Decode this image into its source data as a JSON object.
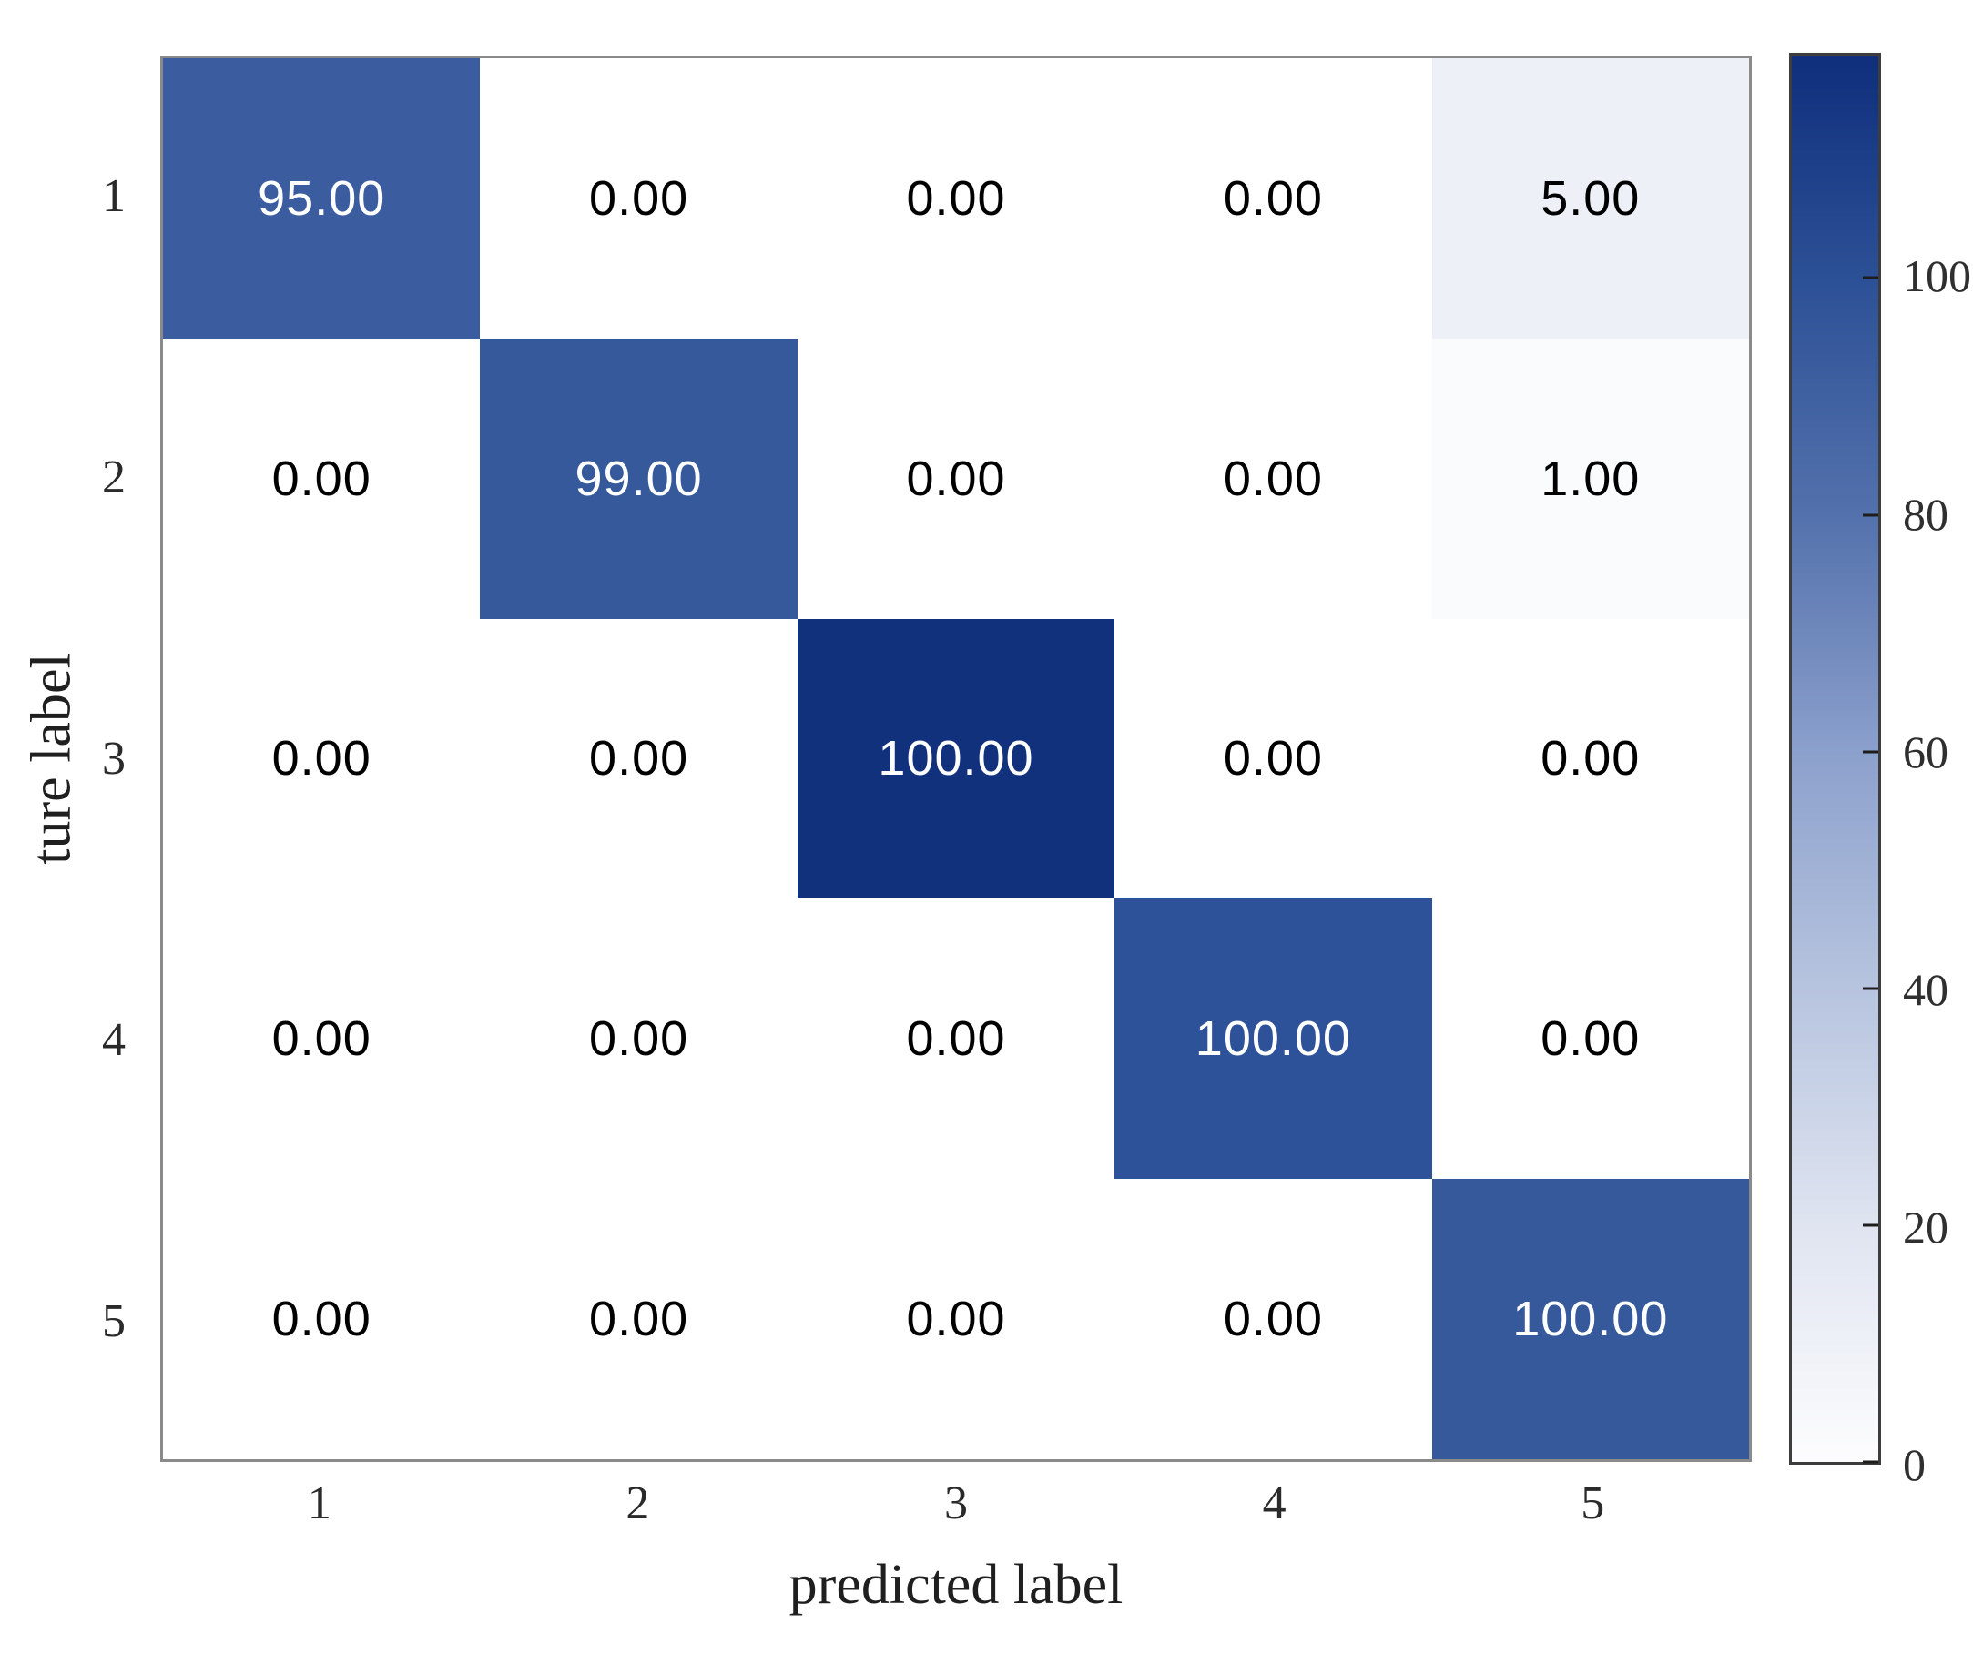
{
  "chart_data": {
    "type": "heatmap",
    "title": "",
    "xlabel": "predicted label",
    "ylabel": "ture label",
    "x_ticklabels": [
      "1",
      "2",
      "3",
      "4",
      "5"
    ],
    "y_ticklabels": [
      "1",
      "2",
      "3",
      "4",
      "5"
    ],
    "matrix": [
      [
        95.0,
        0.0,
        0.0,
        0.0,
        5.0
      ],
      [
        0.0,
        99.0,
        0.0,
        0.0,
        1.0
      ],
      [
        0.0,
        0.0,
        100.0,
        0.0,
        0.0
      ],
      [
        0.0,
        0.0,
        0.0,
        100.0,
        0.0
      ],
      [
        0.0,
        0.0,
        0.0,
        0.0,
        100.0
      ]
    ],
    "cell_text": [
      [
        "95.00",
        "0.00",
        "0.00",
        "0.00",
        "5.00"
      ],
      [
        "0.00",
        "99.00",
        "0.00",
        "0.00",
        "1.00"
      ],
      [
        "0.00",
        "0.00",
        "100.00",
        "0.00",
        "0.00"
      ],
      [
        "0.00",
        "0.00",
        "0.00",
        "100.00",
        "0.00"
      ],
      [
        "0.00",
        "0.00",
        "0.00",
        "0.00",
        "100.00"
      ]
    ],
    "colorbar": {
      "tick_labels": [
        "100",
        "80",
        "60",
        "40",
        "20",
        "0"
      ],
      "tick_values": [
        100,
        80,
        60,
        40,
        20,
        0
      ],
      "orientation": "vertical",
      "position": "right"
    },
    "grid": false
  },
  "colors": {
    "cell_colors": [
      [
        "#3B5D9F",
        "#FFFFFF",
        "#FFFFFF",
        "#FFFFFF",
        "#EEF0F7"
      ],
      [
        "#FFFFFF",
        "#36599C",
        "#FFFFFF",
        "#FFFFFF",
        "#FAFBFD"
      ],
      [
        "#FFFFFF",
        "#FFFFFF",
        "#12317D",
        "#FFFFFF",
        "#FFFFFF"
      ],
      [
        "#FFFFFF",
        "#FFFFFF",
        "#FFFFFF",
        "#2E5299",
        "#FFFFFF"
      ],
      [
        "#FFFFFF",
        "#FFFFFF",
        "#FFFFFF",
        "#FFFFFF",
        "#36599C"
      ]
    ],
    "cell_text_colors": [
      [
        "#FFFFFF",
        "#000000",
        "#000000",
        "#000000",
        "#000000"
      ],
      [
        "#000000",
        "#FFFFFF",
        "#000000",
        "#000000",
        "#000000"
      ],
      [
        "#000000",
        "#000000",
        "#FFFFFF",
        "#000000",
        "#000000"
      ],
      [
        "#000000",
        "#000000",
        "#000000",
        "#FFFFFF",
        "#000000"
      ],
      [
        "#000000",
        "#000000",
        "#000000",
        "#000000",
        "#FFFFFF"
      ]
    ],
    "colorbar_gradient": [
      "#FDFDFE",
      "#DFE4F0",
      "#B7C4DF",
      "#8BA0CC",
      "#5371AC",
      "#2C5096",
      "#0F2E7C"
    ],
    "axis_spine": "#8A8A8A",
    "colorbar_border": "#3D3D3D",
    "label_color": "#1F1F1F"
  }
}
